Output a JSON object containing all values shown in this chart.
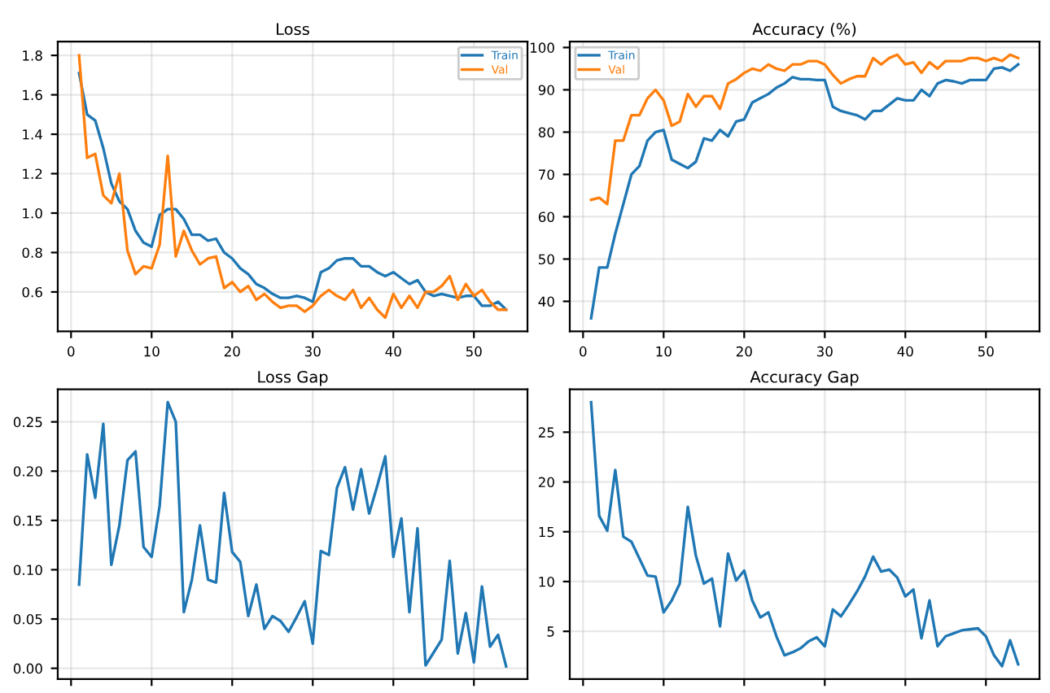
{
  "chart_data": [
    {
      "type": "line",
      "title": "Loss",
      "xlim": [
        -1.65,
        56.65
      ],
      "xticks": [
        0,
        10,
        20,
        30,
        40,
        50
      ],
      "ylim": [
        0.4,
        1.87
      ],
      "yticks": [
        0.6,
        0.8,
        {
          "value": 1.0,
          "label": "1.0"
        },
        1.2,
        1.4,
        1.6,
        1.8
      ],
      "grid": true,
      "legend": "top right",
      "x": [
        1,
        2,
        3,
        4,
        5,
        6,
        7,
        8,
        9,
        10,
        11,
        12,
        13,
        14,
        15,
        16,
        17,
        18,
        19,
        20,
        21,
        22,
        23,
        24,
        25,
        26,
        27,
        28,
        29,
        30,
        31,
        32,
        33,
        34,
        35,
        36,
        37,
        38,
        39,
        40,
        41,
        42,
        43,
        44,
        45,
        46,
        47,
        48,
        49,
        50,
        51,
        52,
        53,
        54
      ],
      "series": [
        {
          "name": "Train",
          "color": "#1f77b4",
          "values": [
            1.71,
            1.5,
            1.47,
            1.33,
            1.15,
            1.06,
            1.02,
            0.91,
            0.85,
            0.83,
            0.99,
            1.02,
            1.02,
            0.97,
            0.89,
            0.89,
            0.86,
            0.87,
            0.8,
            0.77,
            0.72,
            0.69,
            0.64,
            0.62,
            0.59,
            0.57,
            0.57,
            0.58,
            0.57,
            0.55,
            0.7,
            0.72,
            0.76,
            0.77,
            0.77,
            0.73,
            0.73,
            0.7,
            0.68,
            0.7,
            0.67,
            0.64,
            0.66,
            0.6,
            0.58,
            0.59,
            0.58,
            0.57,
            0.58,
            0.58,
            0.53,
            0.53,
            0.55,
            0.51
          ]
        },
        {
          "name": "Val",
          "color": "#ff7f0e",
          "values": [
            1.8,
            1.28,
            1.3,
            1.09,
            1.05,
            1.2,
            0.81,
            0.69,
            0.73,
            0.72,
            0.84,
            1.29,
            0.78,
            0.91,
            0.81,
            0.74,
            0.77,
            0.78,
            0.62,
            0.65,
            0.6,
            0.63,
            0.56,
            0.59,
            0.55,
            0.52,
            0.53,
            0.53,
            0.5,
            0.53,
            0.58,
            0.61,
            0.58,
            0.56,
            0.61,
            0.52,
            0.57,
            0.51,
            0.47,
            0.59,
            0.52,
            0.58,
            0.52,
            0.6,
            0.6,
            0.63,
            0.68,
            0.56,
            0.64,
            0.58,
            0.61,
            0.55,
            0.51,
            0.51
          ]
        }
      ]
    },
    {
      "type": "line",
      "title": "Accuracy (%)",
      "xlim": [
        -1.65,
        56.65
      ],
      "xticks": [
        0,
        10,
        20,
        30,
        40,
        50
      ],
      "ylim": [
        32.9,
        101.4
      ],
      "yticks": [
        40,
        50,
        60,
        70,
        80,
        90,
        100
      ],
      "grid": true,
      "legend": "top left",
      "x": [
        1,
        2,
        3,
        4,
        5,
        6,
        7,
        8,
        9,
        10,
        11,
        12,
        13,
        14,
        15,
        16,
        17,
        18,
        19,
        20,
        21,
        22,
        23,
        24,
        25,
        26,
        27,
        28,
        29,
        30,
        31,
        32,
        33,
        34,
        35,
        36,
        37,
        38,
        39,
        40,
        41,
        42,
        43,
        44,
        45,
        46,
        47,
        48,
        49,
        50,
        51,
        52,
        53,
        54
      ],
      "series": [
        {
          "name": "Train",
          "color": "#1f77b4",
          "values": [
            36,
            48,
            48,
            56,
            63,
            70,
            72,
            78,
            80,
            80.5,
            73.5,
            72.5,
            71.5,
            73,
            78.5,
            78,
            80.5,
            79,
            82.5,
            83,
            87,
            88,
            89,
            90.5,
            91.5,
            93,
            92.5,
            92.5,
            92.3,
            92.3,
            86,
            85,
            84.5,
            84,
            83,
            85,
            85,
            86.5,
            88,
            87.5,
            87.5,
            90,
            88.5,
            91.5,
            92.3,
            92,
            91.5,
            92.3,
            92.3,
            92.3,
            95,
            95.3,
            94.5,
            96
          ]
        },
        {
          "name": "Val",
          "color": "#ff7f0e",
          "values": [
            64,
            64.5,
            63,
            78,
            78,
            84,
            84,
            88,
            90,
            87.5,
            81.5,
            82.5,
            89,
            86,
            88.5,
            88.5,
            85.5,
            91.5,
            92.5,
            94,
            95,
            94.5,
            96,
            95,
            94.5,
            96,
            96,
            96.8,
            96.8,
            96,
            93.5,
            91.5,
            92.5,
            93.2,
            93.2,
            97.5,
            96,
            97.5,
            98.3,
            96,
            96.5,
            94,
            96.5,
            95,
            96.8,
            96.8,
            96.8,
            97.5,
            97.5,
            96.8,
            97.5,
            96.8,
            98.3,
            97.5
          ]
        }
      ]
    },
    {
      "type": "line",
      "title": "Loss Gap",
      "xlim": [
        -1.65,
        56.65
      ],
      "xticks": [
        {
          "value": 0,
          "label": null
        },
        {
          "value": 10,
          "label": null
        },
        {
          "value": 20,
          "label": null
        },
        {
          "value": 30,
          "label": null
        },
        {
          "value": 40,
          "label": null
        },
        {
          "value": 50,
          "label": null
        }
      ],
      "ylim": [
        -0.011,
        0.283
      ],
      "yticks": [
        {
          "value": 0,
          "label": "0.00"
        },
        0.05,
        {
          "value": 0.1,
          "label": "0.10"
        },
        0.15,
        {
          "value": 0.2,
          "label": "0.20"
        },
        0.25
      ],
      "grid": true,
      "tick_labels": "y",
      "x": [
        1,
        2,
        3,
        4,
        5,
        6,
        7,
        8,
        9,
        10,
        11,
        12,
        13,
        14,
        15,
        16,
        17,
        18,
        19,
        20,
        21,
        22,
        23,
        24,
        25,
        26,
        27,
        28,
        29,
        30,
        31,
        32,
        33,
        34,
        35,
        36,
        37,
        38,
        39,
        40,
        41,
        42,
        43,
        44,
        45,
        46,
        47,
        48,
        49,
        50,
        51,
        52,
        53,
        54
      ],
      "series": [
        {
          "color": "#1f77b4",
          "values": [
            0.085,
            0.217,
            0.173,
            0.248,
            0.105,
            0.145,
            0.211,
            0.22,
            0.123,
            0.113,
            0.165,
            0.27,
            0.25,
            0.057,
            0.09,
            0.145,
            0.09,
            0.087,
            0.178,
            0.118,
            0.108,
            0.053,
            0.085,
            0.04,
            0.053,
            0.048,
            0.037,
            0.052,
            0.068,
            0.025,
            0.119,
            0.115,
            0.183,
            0.204,
            0.161,
            0.202,
            0.157,
            0.185,
            0.215,
            0.113,
            0.152,
            0.057,
            0.142,
            0.003,
            0.016,
            0.029,
            0.109,
            0.015,
            0.056,
            0.006,
            0.083,
            0.022,
            0.034,
            0.002
          ]
        }
      ]
    },
    {
      "type": "line",
      "title": "Accuracy Gap",
      "xlim": [
        -1.65,
        56.65
      ],
      "xticks": [
        {
          "value": 0,
          "label": null
        },
        {
          "value": 10,
          "label": null
        },
        {
          "value": 20,
          "label": null
        },
        {
          "value": 30,
          "label": null
        },
        {
          "value": 40,
          "label": null
        },
        {
          "value": 50,
          "label": null
        }
      ],
      "ylim": [
        0.2,
        29.3
      ],
      "yticks": [
        5,
        10,
        15,
        20,
        25
      ],
      "grid": true,
      "tick_labels": "y",
      "x": [
        1,
        2,
        3,
        4,
        5,
        6,
        7,
        8,
        9,
        10,
        11,
        12,
        13,
        14,
        15,
        16,
        17,
        18,
        19,
        20,
        21,
        22,
        23,
        24,
        25,
        26,
        27,
        28,
        29,
        30,
        31,
        32,
        33,
        34,
        35,
        36,
        37,
        38,
        39,
        40,
        41,
        42,
        43,
        44,
        45,
        46,
        47,
        48,
        49,
        50,
        51,
        52,
        53,
        54
      ],
      "series": [
        {
          "color": "#1f77b4",
          "values": [
            28,
            16.6,
            15.1,
            21.2,
            14.5,
            14,
            12.3,
            10.6,
            10.5,
            6.9,
            8.1,
            9.8,
            17.5,
            12.6,
            9.8,
            10.3,
            5.5,
            12.8,
            10.1,
            11.1,
            8.1,
            6.4,
            6.9,
            4.5,
            2.6,
            2.9,
            3.3,
            4.0,
            4.4,
            3.5,
            7.2,
            6.5,
            7.7,
            9,
            10.5,
            12.5,
            11.0,
            11.2,
            10.4,
            8.5,
            9.2,
            4.3,
            8.1,
            3.5,
            4.5,
            4.8,
            5.1,
            5.2,
            5.3,
            4.5,
            2.6,
            1.5,
            4.1,
            1.7
          ]
        }
      ]
    }
  ]
}
